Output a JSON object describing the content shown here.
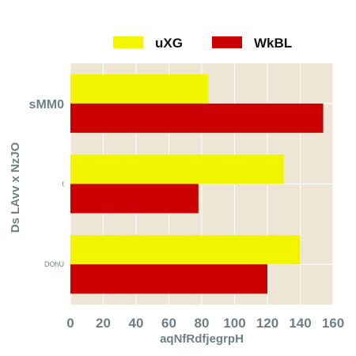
{
  "chart_data": {
    "type": "bar",
    "orientation": "horizontal",
    "categories": [
      "sMM0",
      "t",
      "DOhU"
    ],
    "series": [
      {
        "name": "uXG",
        "values": [
          84,
          130,
          140
        ],
        "color": "#f2f500"
      },
      {
        "name": "WkBL",
        "values": [
          154,
          78,
          120
        ],
        "color": "#cc0000"
      }
    ],
    "xlabel": "aqNfRdfjegrpH",
    "ylabel": "Ds LAvv x NzJO",
    "xlim": [
      0,
      160
    ],
    "xticks": [
      "0",
      "20",
      "40",
      "60",
      "80",
      "100",
      "120",
      "140",
      "160"
    ],
    "grid": true,
    "legend_position": "top",
    "background": "#ede6d5",
    "category_label_style": [
      "large-bold",
      "small",
      "small"
    ]
  }
}
